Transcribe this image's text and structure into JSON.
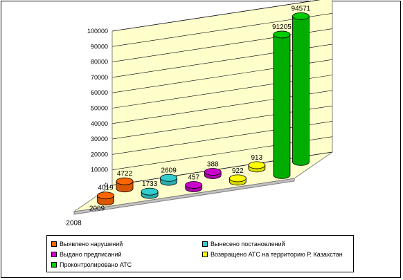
{
  "chart_data": {
    "type": "bar",
    "subtype": "3d-cylinder",
    "title": "",
    "xlabel": "",
    "ylabel": "",
    "ylim": [
      0,
      100000
    ],
    "yticks": [
      0,
      10000,
      20000,
      30000,
      40000,
      50000,
      60000,
      70000,
      80000,
      90000,
      100000
    ],
    "grid": true,
    "depth_categories": [
      "2009",
      "2008"
    ],
    "categories": [
      "Выявлено нарушений",
      "Вынесено постановлений",
      "Выдано предписаний",
      "Возвращено АТС на территорию Р. Казахстан",
      "Проконтролировано АТС"
    ],
    "series": [
      {
        "name": "2009",
        "values": [
          4722,
          2609,
          388,
          913,
          94571
        ]
      },
      {
        "name": "2008",
        "values": [
          4019,
          1733,
          457,
          922,
          91205
        ]
      }
    ],
    "data_labels": true,
    "legend_position": "bottom"
  },
  "legend": {
    "items": [
      {
        "label": "Выявлено нарушений",
        "color": "#ff6600"
      },
      {
        "label": "Вынесено постановлений",
        "color": "#33cccc"
      },
      {
        "label": "Выдано предписаний",
        "color": "#cc00cc"
      },
      {
        "label": "Возвращено АТС на территорию Р. Казахстан",
        "color": "#ffff00"
      },
      {
        "label": "Проконтролировано АТС",
        "color": "#00cc00"
      }
    ]
  },
  "colors": {
    "wall": "#ffffcc",
    "floor": "#ffffcc",
    "floor_shadow": "#c0c0c0"
  }
}
